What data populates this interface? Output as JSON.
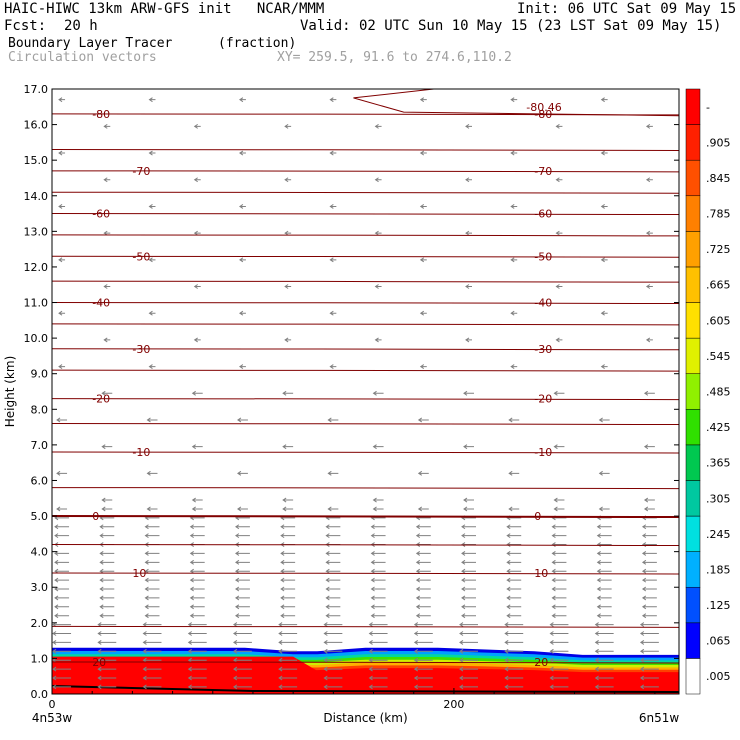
{
  "header": {
    "model_line": "HAIC-HIWC 13km ARW-GFS init   NCAR/MMM",
    "init": "Init: 06 UTC Sat 09 May 15",
    "fcst_label": "Fcst:",
    "fcst_value": "20 h",
    "valid": "Valid: 02 UTC Sun 10 May 15 (23 LST Sat 09 May 15)",
    "field": "Boundary Layer Tracer",
    "field_units": "(fraction)",
    "vectors": "Circulation vectors",
    "xy": "XY= 259.5, 91.6 to 274.6,110.2"
  },
  "colors": {
    "contour": "#800000",
    "vector": "#808080",
    "accent_text": "#a0a0a0"
  },
  "chart_data": {
    "type": "heatmap",
    "xlabel": "Distance (km)",
    "ylabel": "Height (km)",
    "xlim": [
      0,
      312
    ],
    "ylim": [
      0.0,
      17.0
    ],
    "x_ticks": [
      "0",
      "200"
    ],
    "x_end_labels": [
      "4n53w",
      "6n51w"
    ],
    "y_ticks": [
      "0.0",
      "1.0",
      "2.0",
      "3.0",
      "4.0",
      "5.0",
      "6.0",
      "7.0",
      "8.0",
      "9.0",
      "10.0",
      "11.0",
      "12.0",
      "13.0",
      "14.0",
      "15.0",
      "16.0",
      "17.0"
    ],
    "colorbar_labels": [
      ".005",
      ".065",
      ".125",
      ".185",
      ".245",
      ".305",
      ".365",
      ".425",
      ".485",
      ".545",
      ".605",
      ".665",
      ".725",
      ".785",
      ".845",
      ".905",
      "-"
    ],
    "colorbar_colors": [
      "#ffffff",
      "#0000ff",
      "#0050ff",
      "#00b0ff",
      "#00e0e0",
      "#00c8a0",
      "#00c850",
      "#30e000",
      "#90f000",
      "#e0f000",
      "#ffe000",
      "#ffc000",
      "#ffa000",
      "#ff8000",
      "#ff5000",
      "#ff2000",
      "#ff0000"
    ],
    "temperature_contours": [
      {
        "label": "-80",
        "y": 16.3
      },
      {
        "label": "-70",
        "y": 14.7
      },
      {
        "label": "-60",
        "y": 13.5
      },
      {
        "label": "-50",
        "y": 12.3
      },
      {
        "label": "-40",
        "y": 11.0
      },
      {
        "label": "-30",
        "y": 9.7
      },
      {
        "label": "-20",
        "y": 8.3
      },
      {
        "label": "-10",
        "y": 6.8
      },
      {
        "label": "0",
        "y": 5.0
      },
      {
        "label": "10",
        "y": 3.4
      },
      {
        "label": "20",
        "y": 0.9
      }
    ],
    "extra_contour_heights": [
      15.3,
      14.1,
      12.9,
      11.6,
      10.4,
      9.1,
      7.6,
      5.8,
      4.2,
      1.9
    ],
    "annotations": [
      "-80.46"
    ],
    "tracer_top_height": [
      1.3,
      1.3,
      1.3,
      1.3,
      1.3,
      1.2,
      1.2,
      1.3,
      1.3,
      1.25,
      1.2,
      1.1,
      1.1,
      1.1
    ],
    "tracer_top_x": [
      0,
      24,
      48,
      72,
      96,
      120,
      132,
      156,
      192,
      216,
      240,
      264,
      288,
      312
    ]
  }
}
